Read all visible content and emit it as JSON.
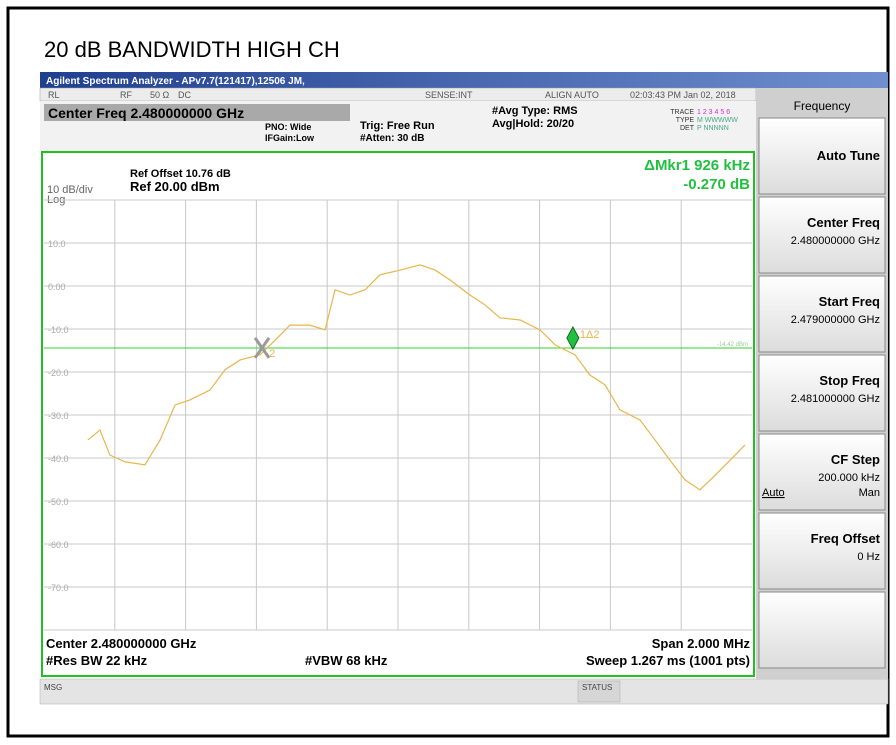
{
  "screen": {
    "heading": "20 dB BANDWIDTH HIGH CH",
    "window_title": "Agilent Spectrum Analyzer - APv7.7(121417),12506 JM,",
    "status": [
      "RL",
      "RF",
      "50 Ω",
      "DC",
      "SENSE:INT",
      "ALIGN AUTO",
      "02:03:43 PM Jan 02, 2018"
    ],
    "center_freq": "Center Freq 2.480000000 GHz",
    "pno": "PNO: Wide",
    "ifgain": "IFGain:Low",
    "trig": "Trig: Free Run",
    "atten": "#Atten: 30 dB",
    "avg_type": "#Avg Type: RMS",
    "avg_hold": "Avg|Hold: 20/20",
    "trace_rows": [
      [
        "TRACE",
        "1 2 3 4 5 6"
      ],
      [
        "TYPE",
        "M WWWWW"
      ],
      [
        "DET",
        "P NNNNN"
      ]
    ],
    "ref_offset": "Ref Offset 10.76 dB",
    "ref_level": "Ref 20.00 dBm",
    "scale": "10 dB/div",
    "scale_type": "Log",
    "marker_readout": "ΔMkr1 926 kHz",
    "marker_value": "-0.270 dB",
    "center": "Center 2.480000000 GHz",
    "res_bw": "#Res BW 22 kHz",
    "vbw": "#VBW 68 kHz",
    "span": "Span 2.000 MHz",
    "sweep": "Sweep  1.267 ms (1001 pts)",
    "msg": "MSG",
    "status_label": "STATUS"
  },
  "softkeys": {
    "menu": "Frequency",
    "keys": [
      {
        "label": "Auto Tune"
      },
      {
        "label": "Center Freq",
        "value": "2.480000000 GHz"
      },
      {
        "label": "Start Freq",
        "value": "2.479000000 GHz"
      },
      {
        "label": "Stop Freq",
        "value": "2.481000000 GHz"
      },
      {
        "label": "CF Step",
        "value": "200.000 kHz",
        "options": [
          "Auto",
          "Man"
        ]
      },
      {
        "label": "Freq Offset",
        "value": "0 Hz"
      }
    ]
  },
  "chart_data": {
    "type": "line",
    "color": "#e8b54a",
    "grid": true,
    "xlim": [
      2.479,
      2.481
    ],
    "ylim": [
      -80,
      20
    ],
    "yticks": [
      {
        "value": 10,
        "label": "10.0"
      },
      {
        "value": 0,
        "label": "0.00"
      },
      {
        "value": -10,
        "label": "-10.0"
      },
      {
        "value": -20,
        "label": "-20.0"
      },
      {
        "value": -30,
        "label": "-30.0"
      },
      {
        "value": -40,
        "label": "-40.0"
      },
      {
        "value": -50,
        "label": "-50.0"
      },
      {
        "value": -60,
        "label": "-60.0"
      },
      {
        "value": -70,
        "label": "-70.0"
      }
    ],
    "x": [
      2.479124,
      2.479158,
      2.479186,
      2.479229,
      2.479285,
      2.479328,
      2.47937,
      2.479412,
      2.479469,
      2.479511,
      2.479554,
      2.47961,
      2.479653,
      2.479695,
      2.479751,
      2.479794,
      2.479822,
      2.479864,
      2.479907,
      2.479949,
      2.480006,
      2.480062,
      2.480105,
      2.480147,
      2.480203,
      2.480246,
      2.480288,
      2.480345,
      2.480401,
      2.480444,
      2.4805,
      2.480542,
      2.480585,
      2.480627,
      2.480684,
      2.480726,
      2.480768,
      2.480811,
      2.480853,
      2.480896,
      2.480938,
      2.48098
    ],
    "values": [
      -35.8,
      -33.5,
      -39.3,
      -40.9,
      -41.6,
      -35.8,
      -27.7,
      -26.5,
      -24.2,
      -19.5,
      -17.2,
      -16,
      -12.6,
      -9.1,
      -9.1,
      -10.2,
      -0.9,
      -2.1,
      -0.9,
      2.6,
      3.7,
      4.9,
      3.7,
      1.4,
      -2.1,
      -4.4,
      -7.4,
      -7.9,
      -10.2,
      -13.7,
      -16,
      -20.7,
      -23,
      -28.8,
      -31.2,
      -35.8,
      -40.5,
      -45.1,
      -47.4,
      -44,
      -40.5,
      -37
    ],
    "display_line": {
      "value": -14.42,
      "label": "-14.42 dBm"
    },
    "markers": [
      {
        "label": "2",
        "x": 2.479616,
        "y": -14.4,
        "color": "#9a9a9a"
      },
      {
        "label": "1Δ2",
        "x": 2.480494,
        "y": -12.1,
        "color": "#22c040"
      }
    ]
  }
}
